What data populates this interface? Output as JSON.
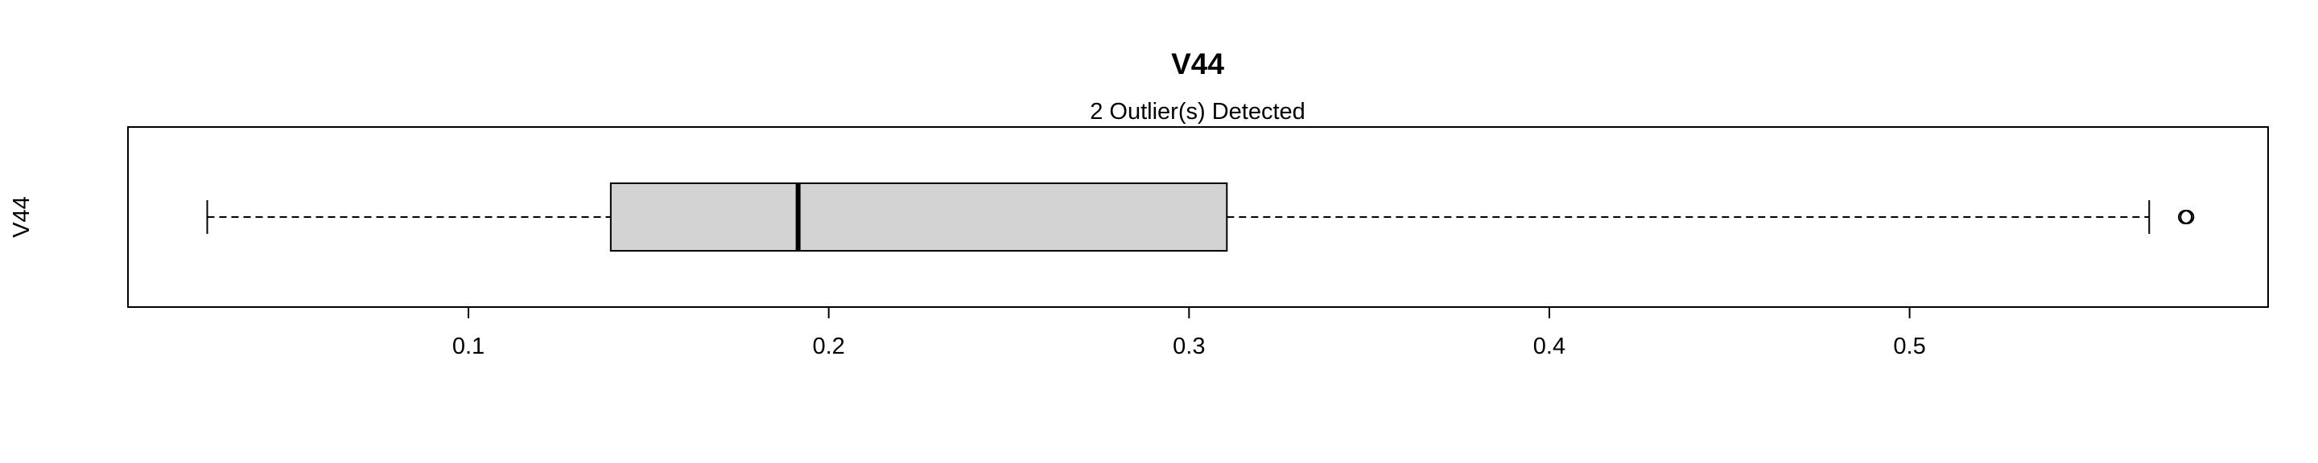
{
  "chart_data": {
    "type": "boxplot",
    "orientation": "horizontal",
    "title": "V44",
    "subtitle": "2 Outlier(s) Detected",
    "ylabel": "V44",
    "xlim": [
      0.0055,
      0.5995
    ],
    "x_ticks": [
      0.1,
      0.2,
      0.3,
      0.4,
      0.5
    ],
    "x_tick_labels": [
      "0.1",
      "0.2",
      "0.3",
      "0.4",
      "0.5"
    ],
    "box": {
      "whisker_low": 0.0275,
      "q1": 0.1395,
      "median": 0.1915,
      "q3": 0.3105,
      "whisker_high": 0.5665
    },
    "outliers": [
      0.5765,
      0.577
    ],
    "colors": {
      "box_fill": "#d3d3d3",
      "stroke": "#000000"
    },
    "grid": false
  }
}
